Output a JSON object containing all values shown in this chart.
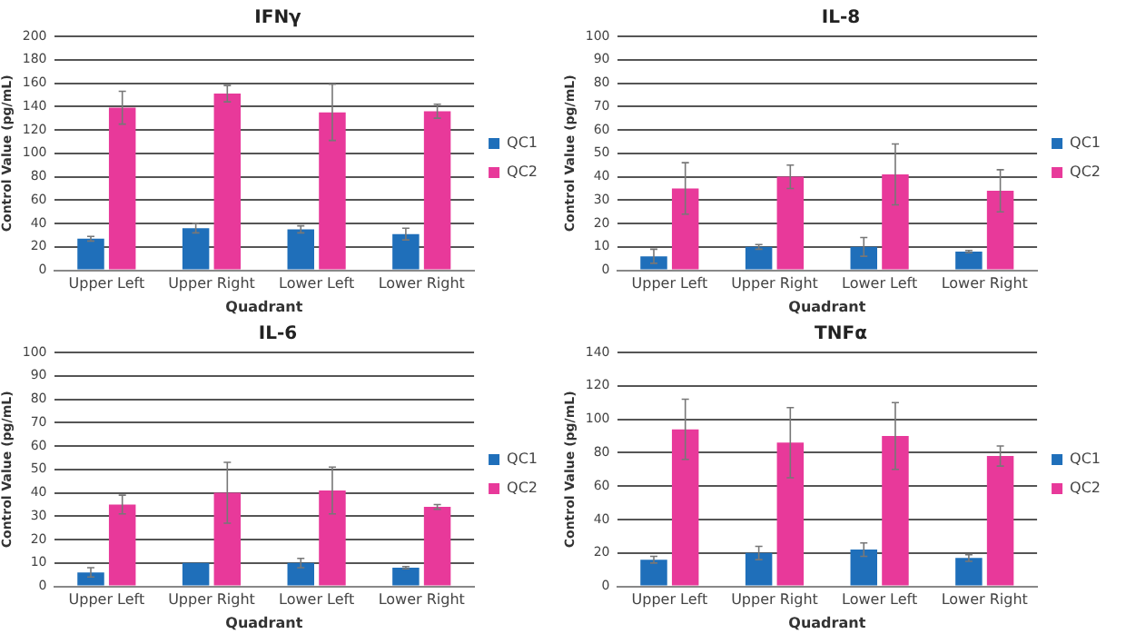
{
  "chart_data": [
    {
      "type": "bar",
      "title": "IFNγ",
      "xlabel": "Quadrant",
      "ylabel": "Control Value (pg/mL)",
      "categories": [
        "Upper Left",
        "Upper Right",
        "Lower Left",
        "Lower Right"
      ],
      "ylim": [
        0,
        200
      ],
      "yticks": [
        0,
        20,
        40,
        60,
        80,
        100,
        120,
        140,
        160,
        180,
        200
      ],
      "grid": "y",
      "legend": "right",
      "series": [
        {
          "name": "QC1",
          "color": "#1f6fba",
          "values": [
            27,
            36,
            35,
            31
          ],
          "errors": [
            2,
            4,
            3,
            5
          ]
        },
        {
          "name": "QC2",
          "color": "#e8399a",
          "values": [
            139,
            151,
            135,
            136
          ],
          "errors": [
            14,
            7,
            24,
            6
          ]
        }
      ]
    },
    {
      "type": "bar",
      "title": "IL-8",
      "xlabel": "Quadrant",
      "ylabel": "Control Value (pg/mL)",
      "categories": [
        "Upper Left",
        "Upper Right",
        "Lower Left",
        "Lower Right"
      ],
      "ylim": [
        0,
        100
      ],
      "yticks": [
        0,
        10,
        20,
        30,
        40,
        50,
        60,
        70,
        80,
        90,
        100
      ],
      "grid": "y",
      "legend": "right",
      "series": [
        {
          "name": "QC1",
          "color": "#1f6fba",
          "values": [
            6,
            10,
            10,
            8
          ],
          "errors": [
            3,
            1,
            4,
            0.5
          ]
        },
        {
          "name": "QC2",
          "color": "#e8399a",
          "values": [
            35,
            40,
            41,
            34
          ],
          "errors": [
            11,
            5,
            13,
            9
          ]
        }
      ]
    },
    {
      "type": "bar",
      "title": "IL-6",
      "xlabel": "Quadrant",
      "ylabel": "Control Value (pg/mL)",
      "categories": [
        "Upper Left",
        "Upper Right",
        "Lower Left",
        "Lower Right"
      ],
      "ylim": [
        0,
        100
      ],
      "yticks": [
        0,
        10,
        20,
        30,
        40,
        50,
        60,
        70,
        80,
        90,
        100
      ],
      "grid": "y",
      "legend": "right",
      "series": [
        {
          "name": "QC1",
          "color": "#1f6fba",
          "values": [
            6,
            10,
            10,
            8
          ],
          "errors": [
            2,
            null,
            2,
            0.5
          ]
        },
        {
          "name": "QC2",
          "color": "#e8399a",
          "values": [
            35,
            40,
            41,
            34
          ],
          "errors": [
            4,
            13,
            10,
            1
          ]
        }
      ]
    },
    {
      "type": "bar",
      "title": "TNFα",
      "xlabel": "Quadrant",
      "ylabel": "Control Value (pg/mL)",
      "categories": [
        "Upper Left",
        "Upper Right",
        "Lower Left",
        "Lower Right"
      ],
      "ylim": [
        0,
        140
      ],
      "yticks": [
        0,
        20,
        40,
        60,
        80,
        100,
        120,
        140
      ],
      "grid": "y",
      "legend": "right",
      "series": [
        {
          "name": "QC1",
          "color": "#1f6fba",
          "values": [
            16,
            20,
            22,
            17
          ],
          "errors": [
            2,
            4,
            4,
            2
          ]
        },
        {
          "name": "QC2",
          "color": "#e8399a",
          "values": [
            94,
            86,
            90,
            78
          ],
          "errors": [
            18,
            21,
            20,
            6
          ]
        }
      ]
    }
  ]
}
